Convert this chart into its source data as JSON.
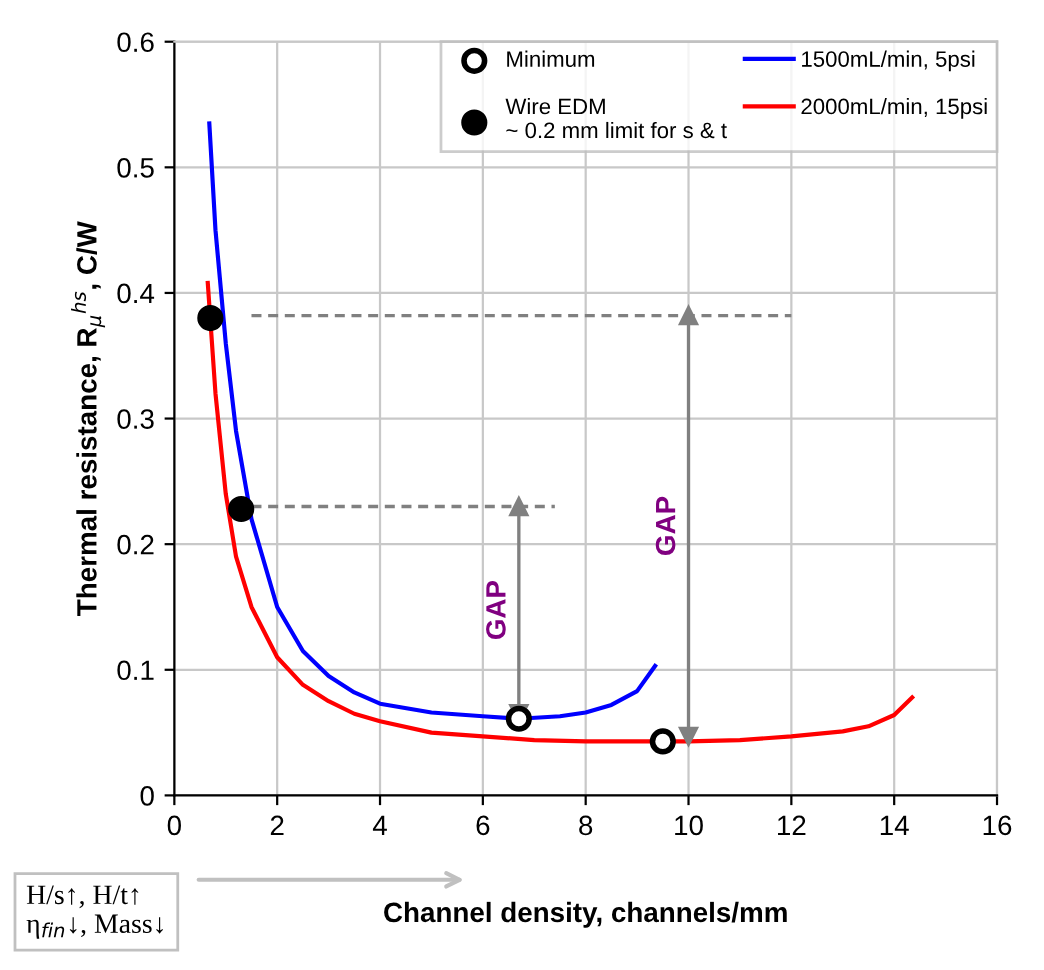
{
  "chart_data": {
    "type": "line",
    "xlabel": "Channel density, channels/mm",
    "ylabel": "Thermal resistance, R$_{μ}$$^{hs}$, C/W",
    "xlim": [
      0,
      16
    ],
    "xticks": [
      0,
      2,
      4,
      6,
      8,
      10,
      12,
      14,
      16
    ],
    "ylim": [
      0,
      0.6
    ],
    "yticks": [
      0,
      0.1,
      0.2,
      0.3,
      0.4,
      0.5,
      0.6
    ],
    "grid": true,
    "legend": "top right",
    "marker": "none",
    "line_style": "solid",
    "series": [
      {
        "name": "1500mL/min, 5psi",
        "color": "#0000ff",
        "x": [
          0.68,
          0.8,
          1.0,
          1.2,
          1.5,
          2,
          2.5,
          3,
          3.5,
          4,
          5,
          6,
          6.7,
          7.5,
          8,
          8.5,
          9,
          9.35
        ],
        "values": [
          0.535,
          0.45,
          0.36,
          0.29,
          0.22,
          0.15,
          0.115,
          0.095,
          0.082,
          0.073,
          0.066,
          0.063,
          0.061,
          0.063,
          0.066,
          0.072,
          0.083,
          0.103
        ]
      },
      {
        "name": "2000mL/min, 15psi",
        "color": "#ff0000",
        "x": [
          0.65,
          0.8,
          1.0,
          1.2,
          1.5,
          2,
          2.5,
          3,
          3.5,
          4,
          5,
          6,
          7,
          8,
          9,
          10,
          11,
          12,
          13,
          13.5,
          14,
          14.35
        ],
        "values": [
          0.408,
          0.32,
          0.24,
          0.19,
          0.15,
          0.11,
          0.088,
          0.075,
          0.065,
          0.059,
          0.05,
          0.047,
          0.044,
          0.043,
          0.043,
          0.043,
          0.044,
          0.047,
          0.051,
          0.055,
          0.064,
          0.078
        ]
      },
      {
        "type": "line",
        "line_style": "dashed",
        "color": "#808080",
        "x": [
          1.5,
          12
        ],
        "values": [
          0.382,
          0.382
        ]
      },
      {
        "type": "line",
        "line_style": "dashed",
        "color": "#808080",
        "x": [
          1.5,
          7.4
        ],
        "values": [
          0.23,
          0.23
        ]
      },
      {
        "type": "line",
        "marker": "triangle",
        "color": "#808080",
        "x": [
          6.7,
          6.7
        ],
        "values": [
          0.23,
          0.065
        ]
      },
      {
        "type": "line",
        "marker": "triangle",
        "color": "#808080",
        "x": [
          10,
          10
        ],
        "values": [
          0.382,
          0.047
        ]
      },
      {
        "type": "scatter",
        "name": "Minimum",
        "color": "#ffffff",
        "marker": "circle",
        "x": [
          6.7,
          9.5
        ],
        "values": [
          0.061,
          0.043
        ]
      },
      {
        "type": "scatter",
        "name": "Wire EDM\n~ 0.2 mm limit for s & t",
        "color": "#000000",
        "marker": "circle",
        "x": [
          0.7,
          1.3
        ],
        "values": [
          0.38,
          0.228
        ]
      }
    ],
    "annotations": [
      "GAP",
      "GAP",
      "H/s↑, H/t↑\nη$_{fin}$↓, Mass↓"
    ]
  }
}
